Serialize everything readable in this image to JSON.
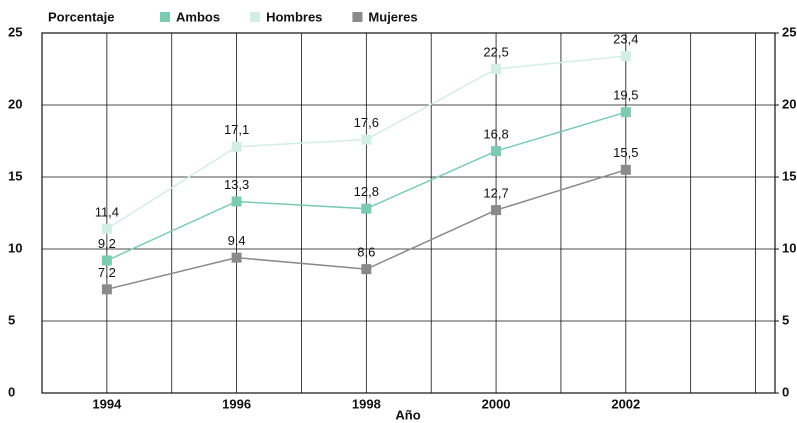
{
  "chart_data": {
    "type": "line",
    "y_label": "Porcentaje",
    "x_label": "Año",
    "x": [
      1994,
      1996,
      1998,
      2000,
      2002
    ],
    "xlim": [
      1993,
      2004.3
    ],
    "xticks": [
      1994,
      1996,
      1998,
      2000,
      2002
    ],
    "ylim": [
      0,
      25
    ],
    "yticks": [
      0,
      5,
      10,
      15,
      20,
      25
    ],
    "y2lim": [
      0,
      25
    ],
    "y2ticks": [
      0,
      5,
      10,
      15,
      20,
      25
    ],
    "grid": true,
    "legend": "top",
    "series": [
      {
        "name": "Ambos",
        "color": "#7ccbb0",
        "values": [
          9.2,
          13.3,
          12.8,
          16.8,
          19.5
        ],
        "value_labels": [
          "9,2",
          "13,3",
          "12,8",
          "16,8",
          "19,5"
        ]
      },
      {
        "name": "Hombres",
        "color": "#d3eee4",
        "values": [
          11.4,
          17.1,
          17.6,
          22.5,
          23.4
        ],
        "value_labels": [
          "11,4",
          "17,1",
          "17,6",
          "22,5",
          "23,4"
        ]
      },
      {
        "name": "Mujeres",
        "color": "#8a8a8a",
        "values": [
          7.2,
          9.4,
          8.6,
          12.7,
          15.5
        ],
        "value_labels": [
          "7,2",
          "9,4",
          "8,6",
          "12,7",
          "15,5"
        ]
      }
    ]
  }
}
